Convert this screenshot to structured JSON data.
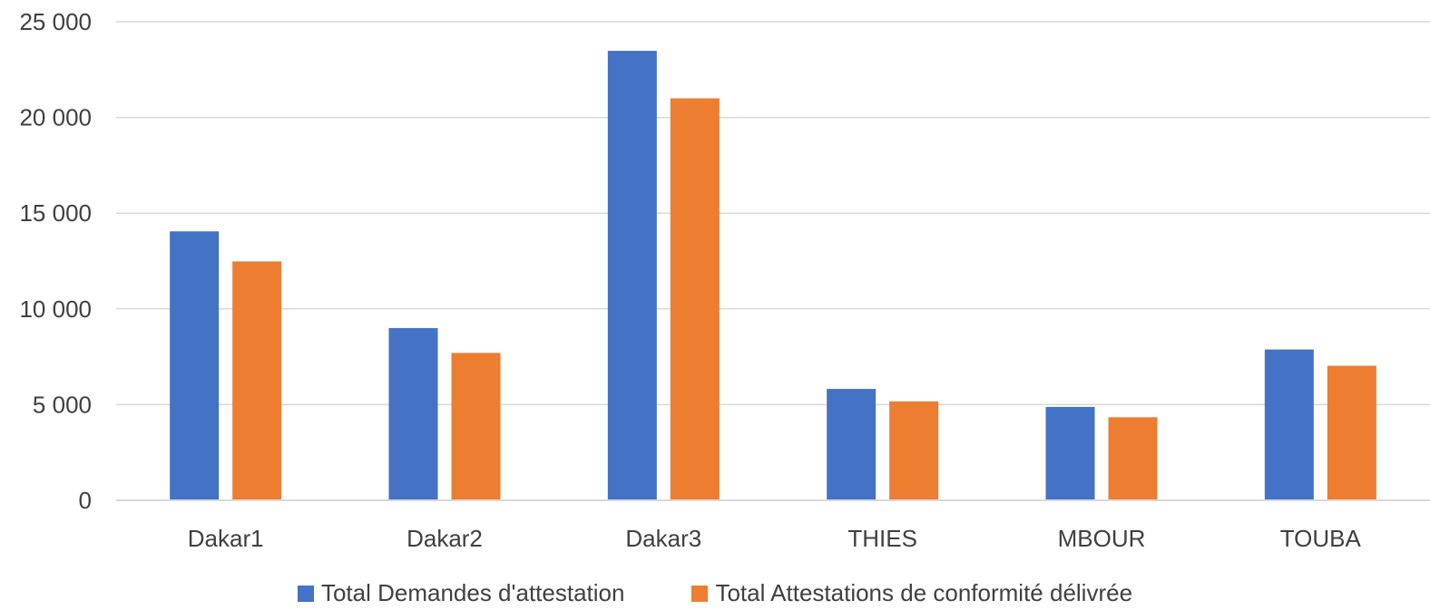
{
  "chart_data": {
    "type": "bar",
    "categories": [
      "Dakar1",
      "Dakar2",
      "Dakar3",
      "THIES",
      "MBOUR",
      "TOUBA"
    ],
    "series": [
      {
        "name": "Total Demandes d'attestation",
        "color": "#4472C4",
        "values": [
          14050,
          9000,
          23480,
          5820,
          4880,
          7880
        ]
      },
      {
        "name": "Total Attestations de conformité délivrée",
        "color": "#ED7D31",
        "values": [
          12480,
          7700,
          21000,
          5170,
          4340,
          7030
        ]
      }
    ],
    "ylim": [
      0,
      25000
    ],
    "yticks": [
      0,
      5000,
      10000,
      15000,
      20000,
      25000
    ],
    "ytick_labels": [
      "0",
      "5 000",
      "10 000",
      "15 000",
      "20 000",
      "25 000"
    ],
    "grid": true,
    "legend_position": "bottom",
    "gridline_color": "#D9D9D9",
    "title": "",
    "xlabel": "",
    "ylabel": ""
  }
}
